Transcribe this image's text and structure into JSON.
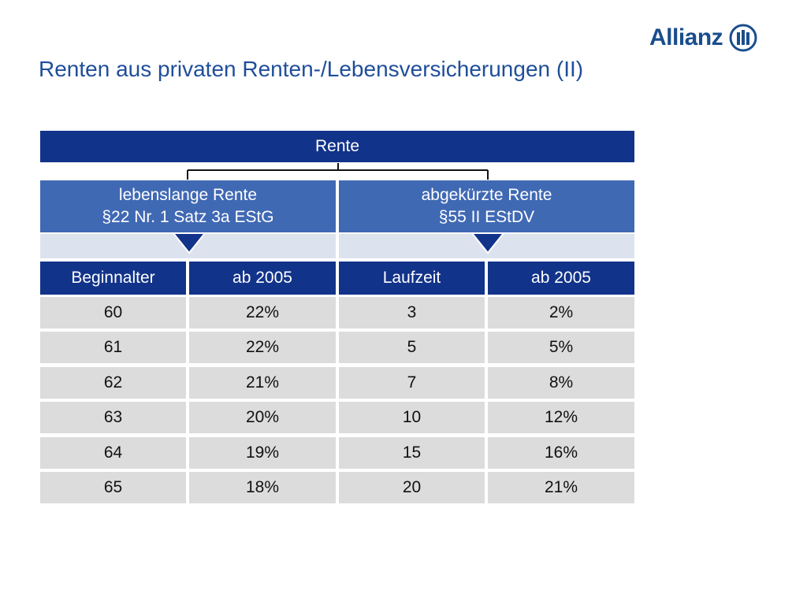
{
  "brand": {
    "name": "Allianz",
    "logo_icon": "allianz-eagle-bars-logo"
  },
  "title": "Renten aus privaten Renten-/Lebensversicherungen (II)",
  "table": {
    "root_label": "Rente",
    "left_group": {
      "line1": "lebenslange Rente",
      "line2": "§22 Nr. 1 Satz 3a EStG"
    },
    "right_group": {
      "line1": "abgekürzte Rente",
      "line2": "§55 II EStDV"
    },
    "headers": [
      "Beginnalter",
      "ab 2005",
      "Laufzeit",
      "ab 2005"
    ],
    "rows": [
      [
        "60",
        "22%",
        "3",
        "2%"
      ],
      [
        "61",
        "22%",
        "5",
        "5%"
      ],
      [
        "62",
        "21%",
        "7",
        "8%"
      ],
      [
        "63",
        "20%",
        "10",
        "12%"
      ],
      [
        "64",
        "19%",
        "15",
        "16%"
      ],
      [
        "65",
        "18%",
        "20",
        "21%"
      ]
    ]
  },
  "colors": {
    "title": "#1f4e9a",
    "dark_bar": "#12338a",
    "mid_bar": "#4069b4",
    "light_bar": "#dde3ee",
    "data_cell": "#dcdcdc"
  }
}
